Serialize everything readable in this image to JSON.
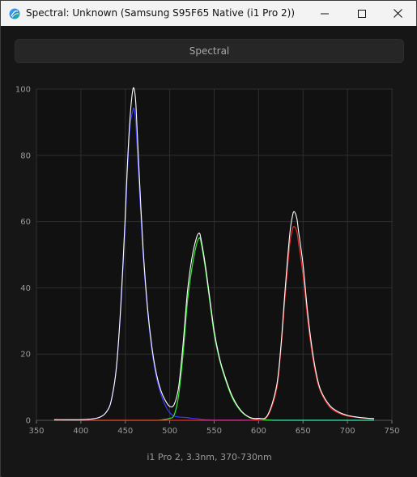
{
  "window": {
    "title": "Spectral: Unknown (Samsung S95F65 Native (i1 Pro 2))",
    "tab_label": "Spectral",
    "caption": "i1 Pro 2, 3.3nm, 370-730nm"
  },
  "colors": {
    "background": "#161616",
    "plot_background": "#111111",
    "grid": "#2e2e2e",
    "white_curve": "#ffffff",
    "blue_curve": "#3a3aff",
    "green_curve": "#33ee33",
    "red_curve": "#ee2a2a"
  },
  "chart_data": {
    "type": "line",
    "title": "",
    "xlabel": "",
    "ylabel": "",
    "xlim": [
      350,
      750
    ],
    "ylim": [
      0,
      100
    ],
    "x_ticks": [
      350,
      400,
      450,
      500,
      550,
      600,
      650,
      700,
      750
    ],
    "y_ticks": [
      0,
      20,
      40,
      60,
      80,
      100
    ],
    "grid": true,
    "legend": "none",
    "x": [
      370,
      400,
      420,
      430,
      435,
      440,
      445,
      450,
      452,
      455,
      458,
      460,
      462,
      465,
      470,
      475,
      480,
      485,
      490,
      495,
      500,
      505,
      510,
      515,
      520,
      525,
      530,
      533,
      535,
      540,
      545,
      550,
      555,
      560,
      570,
      580,
      590,
      600,
      610,
      620,
      625,
      630,
      635,
      638,
      640,
      643,
      645,
      650,
      655,
      660,
      665,
      670,
      680,
      690,
      700,
      710,
      720,
      730
    ],
    "series": [
      {
        "color": "white",
        "values": [
          0.2,
          0.2,
          0.8,
          3,
          7,
          16,
          35,
          62,
          75,
          90,
          99,
          100,
          95,
          78,
          52,
          34,
          22,
          14,
          9,
          6,
          4.2,
          4.8,
          10,
          23,
          39,
          49,
          55,
          56.5,
          55,
          47,
          37,
          27,
          20,
          15,
          7.5,
          3,
          0.9,
          0.6,
          1.5,
          10,
          22,
          40,
          56,
          61.5,
          63,
          61,
          57,
          47,
          33,
          22,
          14,
          9,
          4.5,
          2.5,
          1.5,
          1,
          0.7,
          0.5
        ]
      },
      {
        "color": "blue",
        "values": [
          0.2,
          0.2,
          0.8,
          3,
          7,
          16,
          34,
          60,
          73,
          88,
          93,
          94,
          89,
          74,
          50,
          33,
          21,
          13,
          8,
          4.5,
          2.3,
          1.3,
          1,
          0.9,
          0.8,
          0.6,
          0.5,
          0.4,
          0.3,
          0.2,
          0.15,
          0.1,
          0.1,
          0.1,
          0.1,
          0.1,
          0.1,
          0.1,
          0.1,
          0.1,
          0.1,
          0.1,
          0.1,
          0.1,
          0.1,
          0.1,
          0.1,
          0.1,
          0.1,
          0.1,
          0.1,
          0.1,
          0.1,
          0.1,
          0.1,
          0.1,
          0.1,
          0.1
        ]
      },
      {
        "color": "green",
        "values": [
          0,
          0,
          0,
          0,
          0,
          0,
          0,
          0,
          0,
          0,
          0,
          0,
          0,
          0,
          0,
          0,
          0,
          0,
          0.1,
          0.3,
          0.6,
          1.6,
          7.5,
          20,
          36,
          46,
          53,
          55,
          54,
          46,
          36,
          26,
          19.5,
          14.5,
          7,
          2.8,
          0.8,
          0.3,
          0.1,
          0,
          0,
          0,
          0,
          0,
          0,
          0,
          0,
          0,
          0,
          0,
          0,
          0,
          0,
          0,
          0,
          0,
          0,
          0
        ]
      },
      {
        "color": "red",
        "values": [
          0,
          0,
          0,
          0,
          0,
          0,
          0,
          0,
          0,
          0,
          0,
          0,
          0,
          0,
          0,
          0,
          0,
          0,
          0,
          0,
          0,
          0,
          0,
          0,
          0,
          0,
          0,
          0,
          0,
          0,
          0,
          0,
          0,
          0,
          0,
          0,
          0.05,
          0.2,
          1.2,
          9,
          21,
          38,
          53,
          57.5,
          58.5,
          57,
          53.5,
          44,
          31,
          20.5,
          13,
          8.5,
          4,
          2.2,
          1.3,
          0.9,
          0.6,
          0.4
        ]
      }
    ]
  }
}
